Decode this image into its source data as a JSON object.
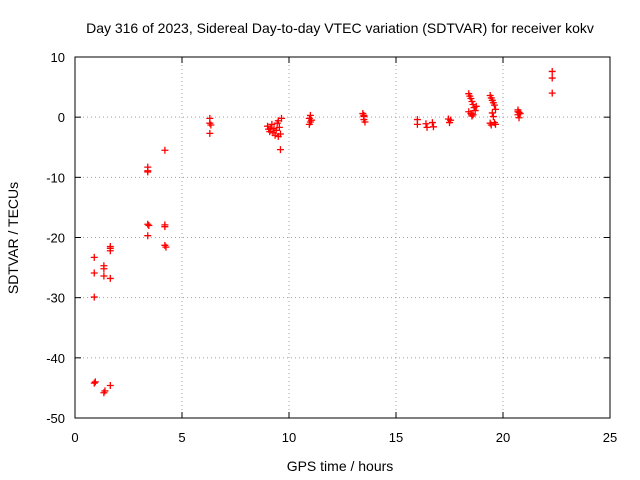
{
  "chart_data": {
    "type": "scatter",
    "title": "Day 316 of 2023, Sidereal Day-to-day VTEC variation (SDTVAR) for receiver kokv",
    "xlabel": "GPS time / hours",
    "ylabel": "SDTVAR / TECUs",
    "xlim": [
      0,
      25
    ],
    "ylim": [
      -50,
      10
    ],
    "xticks": [
      0,
      5,
      10,
      15,
      20,
      25
    ],
    "yticks": [
      -50,
      -40,
      -30,
      -20,
      -10,
      0,
      10
    ],
    "grid": true,
    "marker": "+",
    "color": "#ff0000",
    "series": [
      {
        "name": "SDTVAR",
        "points": [
          [
            0.9,
            -23.3
          ],
          [
            0.9,
            -25.9
          ],
          [
            0.9,
            -29.9
          ],
          [
            0.9,
            -44.2
          ],
          [
            0.95,
            -44.0
          ],
          [
            1.35,
            -24.7
          ],
          [
            1.35,
            -25.2
          ],
          [
            1.35,
            -26.4
          ],
          [
            1.35,
            -45.8
          ],
          [
            1.4,
            -45.5
          ],
          [
            1.65,
            -21.5
          ],
          [
            1.65,
            -22.2
          ],
          [
            1.65,
            -21.8
          ],
          [
            1.65,
            -26.8
          ],
          [
            1.65,
            -44.6
          ],
          [
            3.4,
            -8.3
          ],
          [
            3.4,
            -8.9
          ],
          [
            3.4,
            -9.1
          ],
          [
            3.4,
            -17.8
          ],
          [
            3.45,
            -18.0
          ],
          [
            3.4,
            -19.7
          ],
          [
            4.2,
            -5.5
          ],
          [
            4.2,
            -17.9
          ],
          [
            4.2,
            -18.2
          ],
          [
            4.2,
            -21.3
          ],
          [
            4.25,
            -21.6
          ],
          [
            6.3,
            -0.2
          ],
          [
            6.3,
            -1.0
          ],
          [
            6.35,
            -1.3
          ],
          [
            6.3,
            -2.7
          ],
          [
            9.0,
            -1.5
          ],
          [
            9.05,
            -2.0
          ],
          [
            9.1,
            -2.4
          ],
          [
            9.15,
            -1.8
          ],
          [
            9.2,
            -1.2
          ],
          [
            9.25,
            -2.6
          ],
          [
            9.3,
            -1.9
          ],
          [
            9.35,
            -3.0
          ],
          [
            9.4,
            -2.2
          ],
          [
            9.45,
            -1.0
          ],
          [
            9.5,
            -0.6
          ],
          [
            9.55,
            -1.7
          ],
          [
            9.6,
            -2.8
          ],
          [
            9.65,
            -0.2
          ],
          [
            9.5,
            -3.2
          ],
          [
            9.6,
            -5.4
          ],
          [
            10.95,
            -0.2
          ],
          [
            11.0,
            -0.8
          ],
          [
            11.0,
            0.3
          ],
          [
            10.95,
            -1.2
          ],
          [
            11.05,
            -0.5
          ],
          [
            13.45,
            0.6
          ],
          [
            13.5,
            0.1
          ],
          [
            13.5,
            -0.4
          ],
          [
            13.55,
            -0.8
          ],
          [
            13.5,
            0.3
          ],
          [
            16.0,
            -0.4
          ],
          [
            16.0,
            -1.2
          ],
          [
            16.4,
            -1.1
          ],
          [
            16.45,
            -1.7
          ],
          [
            16.7,
            -0.9
          ],
          [
            16.75,
            -1.6
          ],
          [
            17.45,
            -0.3
          ],
          [
            17.5,
            -0.9
          ],
          [
            17.55,
            -0.5
          ],
          [
            18.4,
            3.9
          ],
          [
            18.45,
            3.5
          ],
          [
            18.5,
            3.1
          ],
          [
            18.55,
            2.6
          ],
          [
            18.6,
            2.1
          ],
          [
            18.65,
            1.6
          ],
          [
            18.7,
            1.1
          ],
          [
            18.5,
            0.6
          ],
          [
            18.55,
            0.2
          ],
          [
            18.4,
            0.9
          ],
          [
            18.6,
            0.4
          ],
          [
            18.75,
            1.8
          ],
          [
            19.4,
            3.6
          ],
          [
            19.45,
            3.2
          ],
          [
            19.5,
            2.8
          ],
          [
            19.55,
            2.4
          ],
          [
            19.6,
            2.0
          ],
          [
            19.65,
            1.3
          ],
          [
            19.5,
            0.7
          ],
          [
            19.55,
            0.1
          ],
          [
            19.4,
            -1.0
          ],
          [
            19.45,
            -1.3
          ],
          [
            19.6,
            -0.9
          ],
          [
            19.65,
            -1.2
          ],
          [
            20.7,
            1.2
          ],
          [
            20.75,
            0.8
          ],
          [
            20.7,
            0.4
          ],
          [
            20.8,
            0.6
          ],
          [
            20.75,
            -0.1
          ],
          [
            20.7,
            0.9
          ],
          [
            22.3,
            7.6
          ],
          [
            22.3,
            6.5
          ],
          [
            22.3,
            4.0
          ]
        ]
      }
    ]
  }
}
